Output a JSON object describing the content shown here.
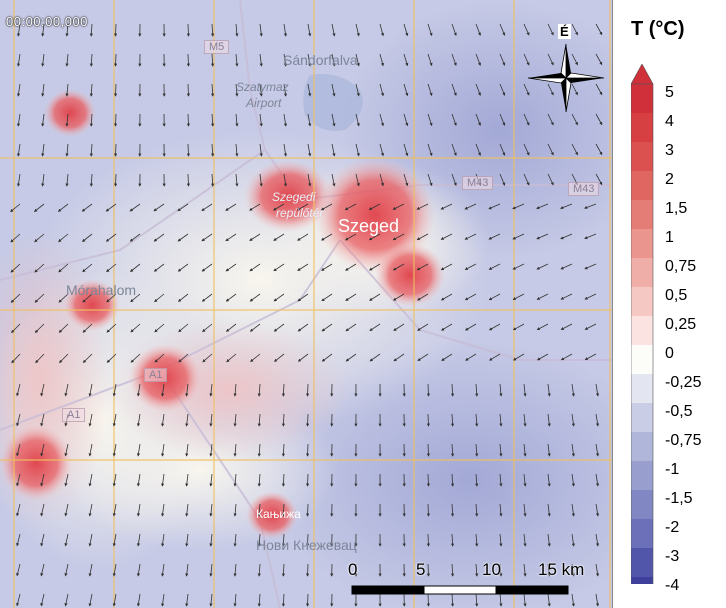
{
  "timestamp": "00:00:00,000",
  "north_label": "É",
  "places": [
    {
      "name": "Sándorfalva",
      "kind": "normal"
    },
    {
      "name": "Szatymaz",
      "kind": "ital"
    },
    {
      "name": "Airport",
      "kind": "ital"
    },
    {
      "name": "Szegedi",
      "kind": "ital"
    },
    {
      "name": "repülőtér",
      "kind": "ital"
    },
    {
      "name": "Szeged",
      "kind": "big"
    },
    {
      "name": "Mórahalom",
      "kind": "normal"
    },
    {
      "name": "Кањижа",
      "kind": "normal"
    },
    {
      "name": "Нови Кнежевац",
      "kind": "normal"
    }
  ],
  "roads": [
    "M5",
    "M43",
    "M43",
    "A1",
    "A1"
  ],
  "scale": {
    "labels": [
      "0",
      "5",
      "10",
      "15 km"
    ]
  },
  "legend": {
    "title": "T (°C)",
    "ticks": [
      "5",
      "4",
      "3",
      "2",
      "1,5",
      "1",
      "0,75",
      "0,5",
      "0,25",
      "0",
      "-0,25",
      "-0,5",
      "-0,75",
      "-1",
      "-1,5",
      "-2",
      "-3",
      "-4"
    ],
    "colors": [
      "#d0303a",
      "#d64043",
      "#db5150",
      "#e06761",
      "#e57d77",
      "#eb958f",
      "#f0aea9",
      "#f5c8c4",
      "#fae3e1",
      "#fcfcf8",
      "#e3e5f0",
      "#c9cde6",
      "#b0b6da",
      "#989fcf",
      "#8087c3",
      "#6b70b8",
      "#5256aa",
      "#3d3f9a"
    ]
  },
  "map_colors": {
    "base": "#c9cde6",
    "warm": "#e24a50",
    "neutral": "#fcfcf0",
    "cool": "#a9aed8",
    "grid": "#f0c060"
  }
}
